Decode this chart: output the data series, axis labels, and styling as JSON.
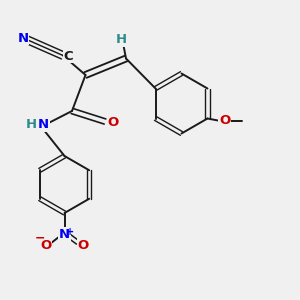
{
  "bg_color": "#f0f0f0",
  "bond_color": "#1a1a1a",
  "N_color": "#0000ee",
  "O_color": "#cc0000",
  "H_color": "#2e8b8b",
  "C_color": "#1a1a1a",
  "figsize": [
    3.0,
    3.0
  ],
  "dpi": 100,
  "xlim": [
    0,
    10
  ],
  "ylim": [
    0,
    10
  ]
}
